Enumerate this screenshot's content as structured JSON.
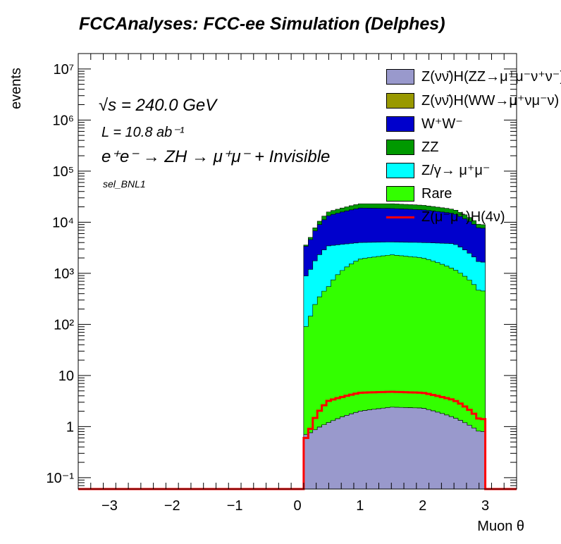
{
  "title": "FCCAnalyses: FCC-ee Simulation (Delphes)",
  "annotations": {
    "energy": "√s = 240.0 GeV",
    "lumi": "L = 10.8 ab⁻¹",
    "process": "e⁺e⁻ → ZH → μ⁺μ⁻ + Invisible",
    "selection": "sel_BNL1"
  },
  "chart_data": {
    "type": "area",
    "stacked": true,
    "xlabel": "Muon θ",
    "ylabel": "events",
    "xlim": [
      -3.5,
      3.5
    ],
    "ylim": [
      0.06,
      20000000
    ],
    "yscale": "log",
    "grid": false,
    "legend_position": "top-right",
    "x_ticks": [
      -3,
      -2,
      -1,
      0,
      1,
      2,
      3
    ],
    "y_ticks": [
      0.1,
      1,
      10,
      100,
      1000,
      10000,
      100000,
      1000000,
      10000000
    ],
    "y_tick_labels": [
      "10⁻¹",
      "1",
      "10",
      "10²",
      "10³",
      "10⁴",
      "10⁵",
      "10⁶",
      "10⁷"
    ],
    "x": [
      0.17,
      0.5,
      1.0,
      1.5,
      2.0,
      2.5,
      2.9
    ],
    "series": [
      {
        "name": "Z(νν̄)H(ZZ→μ⁺μ⁻ν⁺ν⁻)",
        "color": "#9999cc",
        "values": [
          0.7,
          1.2,
          2.0,
          2.4,
          2.3,
          1.5,
          0.8
        ]
      },
      {
        "name": "Z(νν̄)H(WW→μ⁺νμ⁻ν)",
        "color": "#999900",
        "values": [
          0.0,
          0.0,
          0.005,
          0.005,
          0.005,
          0.0,
          0.0
        ]
      },
      {
        "name": "Rare",
        "color": "#33ff00",
        "values": [
          90,
          550,
          1900,
          2300,
          2000,
          1200,
          450
        ]
      },
      {
        "name": "Z/γ→ μ⁺μ⁻",
        "color": "#00ffff",
        "values": [
          800,
          2900,
          2100,
          1800,
          2000,
          2600,
          1200
        ]
      },
      {
        "name": "W⁺W⁻",
        "color": "#0000cc",
        "values": [
          2500,
          10000,
          15000,
          14500,
          13500,
          11000,
          6000
        ]
      },
      {
        "name": "ZZ",
        "color": "#009900",
        "values": [
          200,
          2500,
          4000,
          4400,
          4000,
          3000,
          1300
        ]
      }
    ],
    "overlay": {
      "name": "Z(μ⁻μ⁺)H(4ν)",
      "color": "#ff0000",
      "values": [
        0.6,
        3.2,
        4.6,
        4.8,
        4.6,
        3.3,
        1.4
      ]
    },
    "legend_order": [
      "Z(νν̄)H(ZZ→μ⁺μ⁻ν⁺ν⁻)",
      "Z(νν̄)H(WW→μ⁺νμ⁻ν)",
      "W⁺W⁻",
      "ZZ",
      "Z/γ→ μ⁺μ⁻",
      "Rare",
      "Z(μ⁻μ⁺)H(4ν)"
    ]
  }
}
